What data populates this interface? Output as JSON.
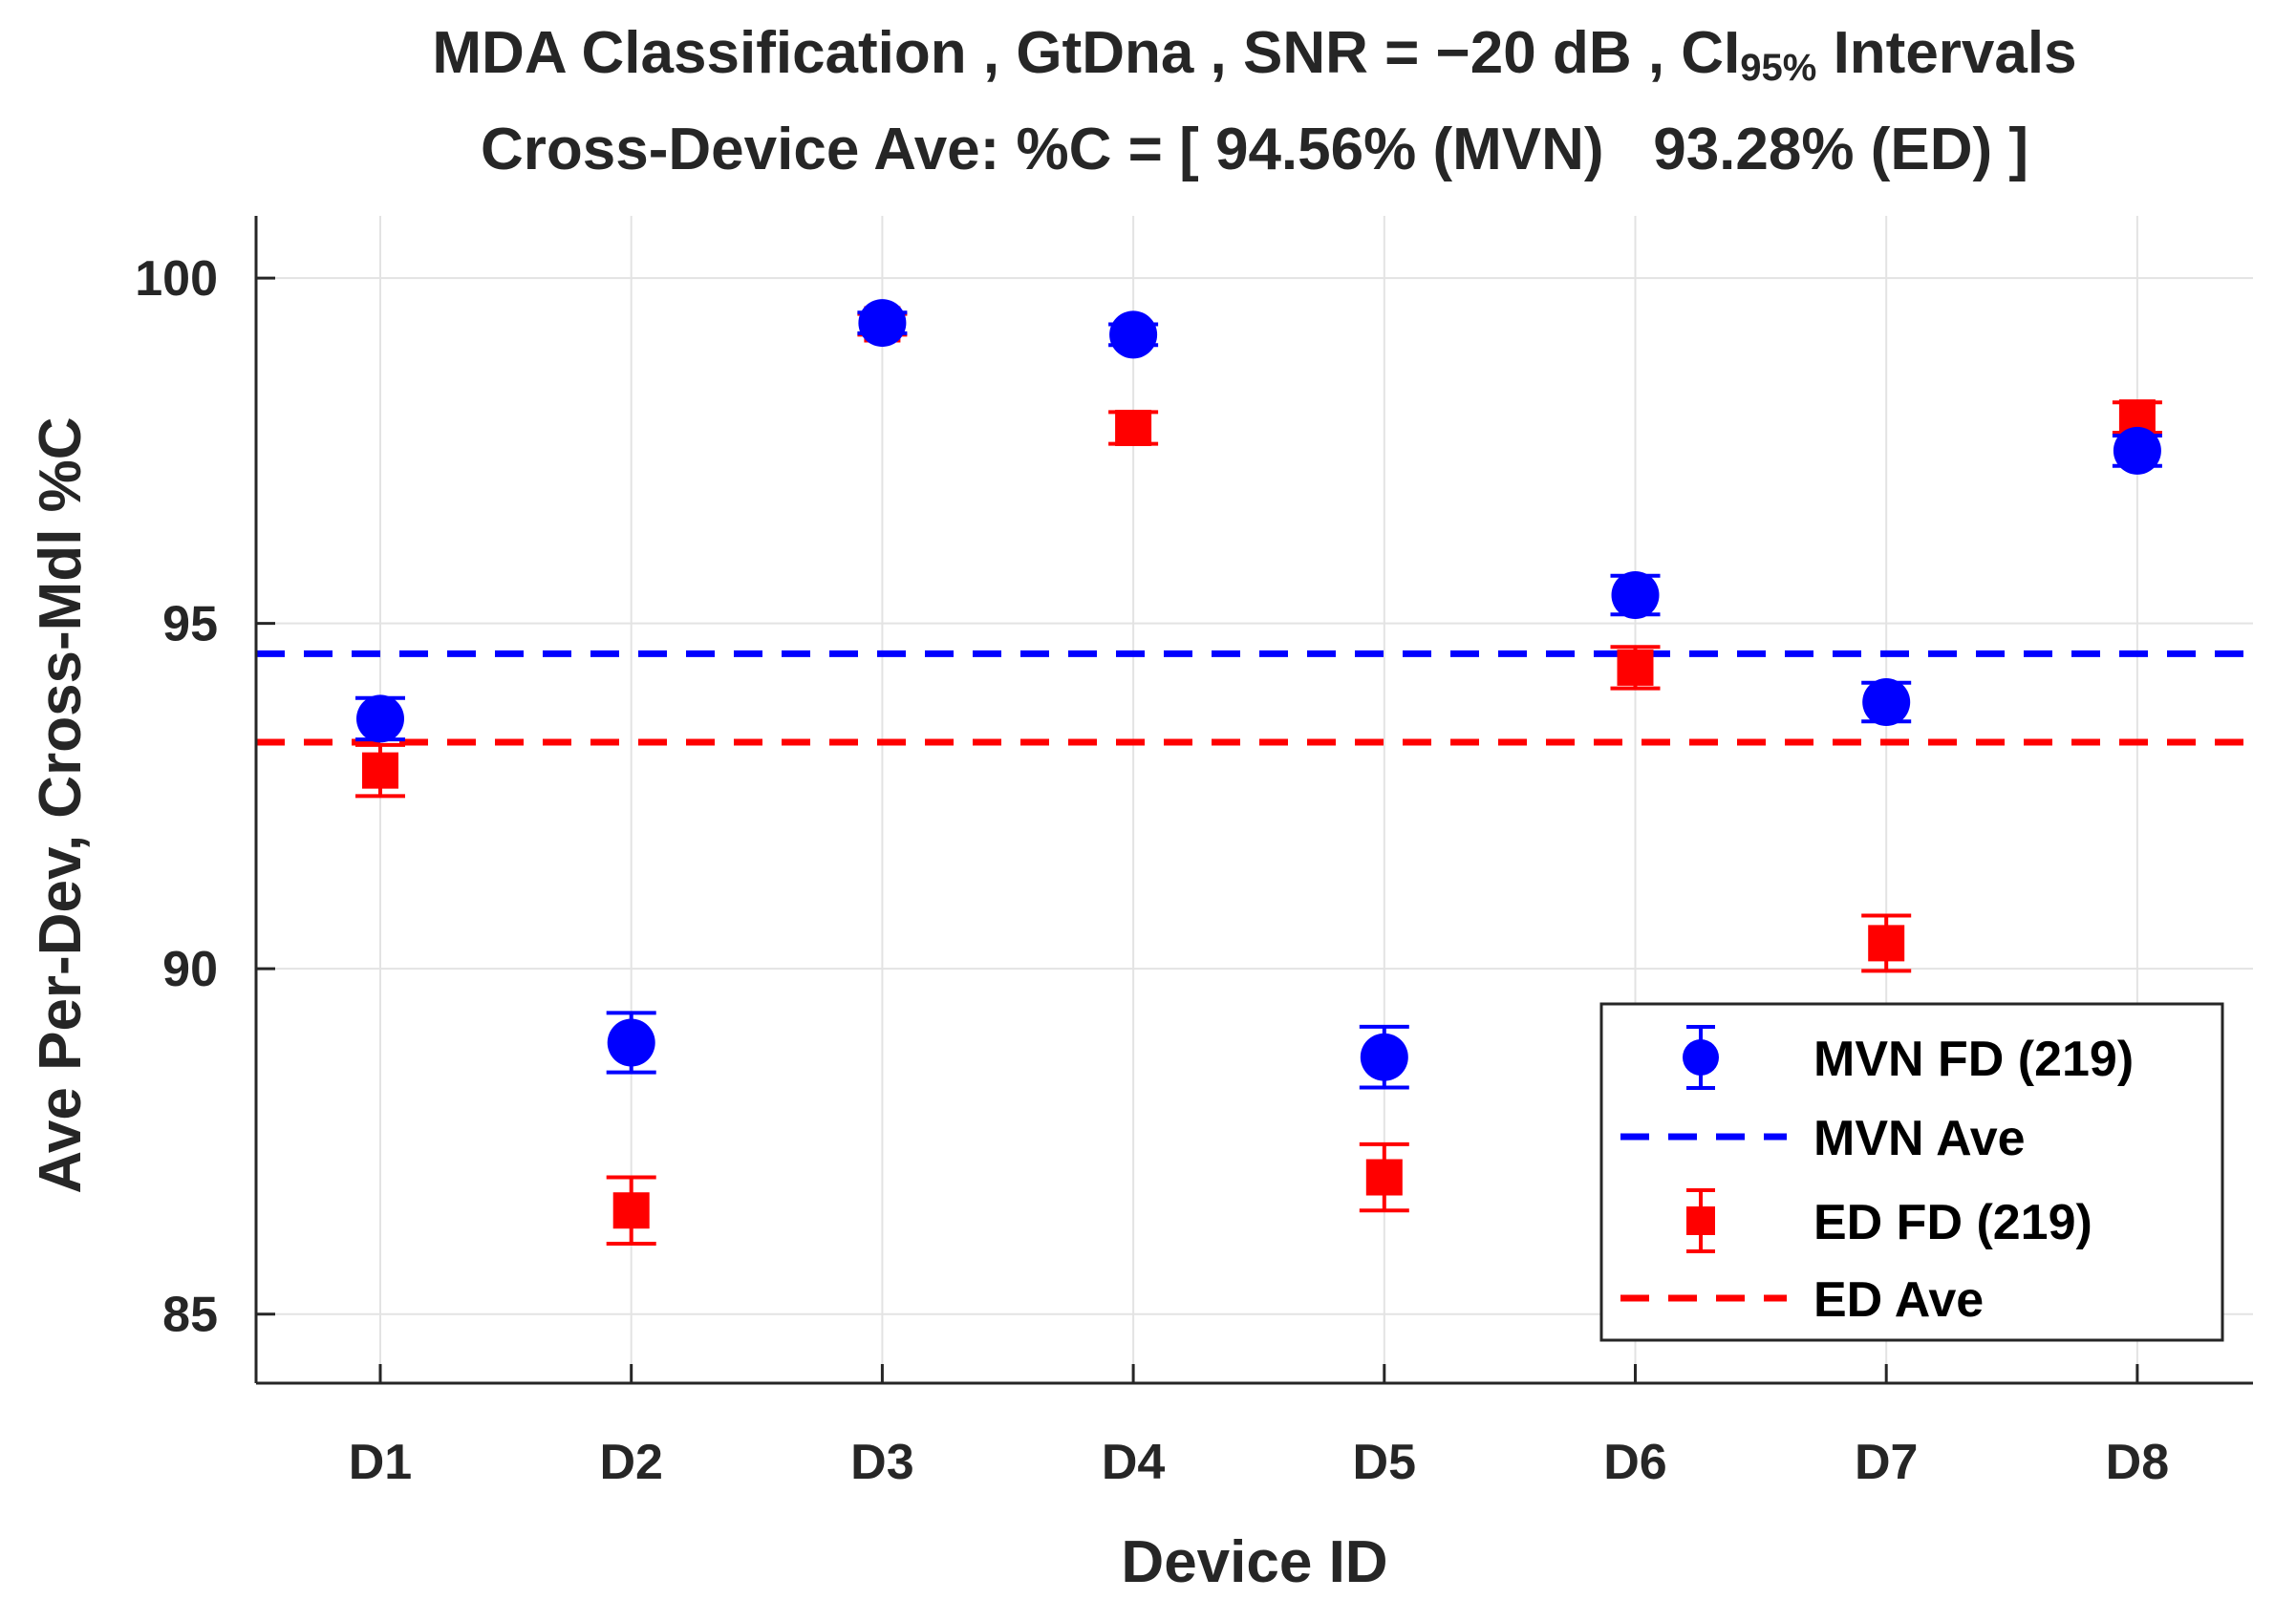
{
  "chart_data": {
    "type": "scatter",
    "title_parts": {
      "line1_before": "MDA Classification , GtDna , SNR = −20 dB , CI",
      "line1_sub": "95%",
      "line1_after": " Intervals"
    },
    "subtitle": "Cross-Device Ave: %C = [ 94.56% (MVN)   93.28% (ED) ]",
    "xlabel": "Device ID",
    "ylabel": "Ave Per-Dev, Cross-Mdl %C",
    "categories": [
      "D1",
      "D2",
      "D3",
      "D4",
      "D5",
      "D6",
      "D7",
      "D8"
    ],
    "ylim": [
      84,
      100.9
    ],
    "yticks": [
      85,
      90,
      95,
      100
    ],
    "grid": true,
    "legend_position": "bottom-right",
    "series": [
      {
        "name": "MVN FD (219)",
        "marker": "circle",
        "color": "#0000ff",
        "values": [
          93.62,
          88.93,
          99.35,
          99.18,
          88.72,
          95.41,
          93.86,
          97.5
        ],
        "ci_low": [
          93.32,
          88.5,
          99.2,
          99.03,
          88.28,
          95.13,
          93.58,
          97.28
        ],
        "ci_high": [
          93.92,
          89.36,
          99.5,
          99.33,
          89.16,
          95.69,
          94.14,
          97.72
        ]
      },
      {
        "name": "ED FD (219)",
        "marker": "square",
        "color": "#ff0000",
        "values": [
          92.87,
          86.5,
          99.33,
          97.83,
          86.98,
          94.36,
          90.37,
          97.98
        ],
        "ci_low": [
          92.5,
          86.02,
          99.18,
          97.6,
          86.5,
          94.06,
          89.97,
          97.76
        ],
        "ci_high": [
          93.24,
          86.98,
          99.48,
          98.06,
          87.46,
          94.66,
          90.77,
          98.2
        ]
      }
    ],
    "reference_lines": [
      {
        "name": "MVN Ave",
        "value": 94.56,
        "color": "#0000ff",
        "style": "dashed"
      },
      {
        "name": "ED Ave",
        "value": 93.28,
        "color": "#ff0000",
        "style": "dashed"
      }
    ]
  }
}
